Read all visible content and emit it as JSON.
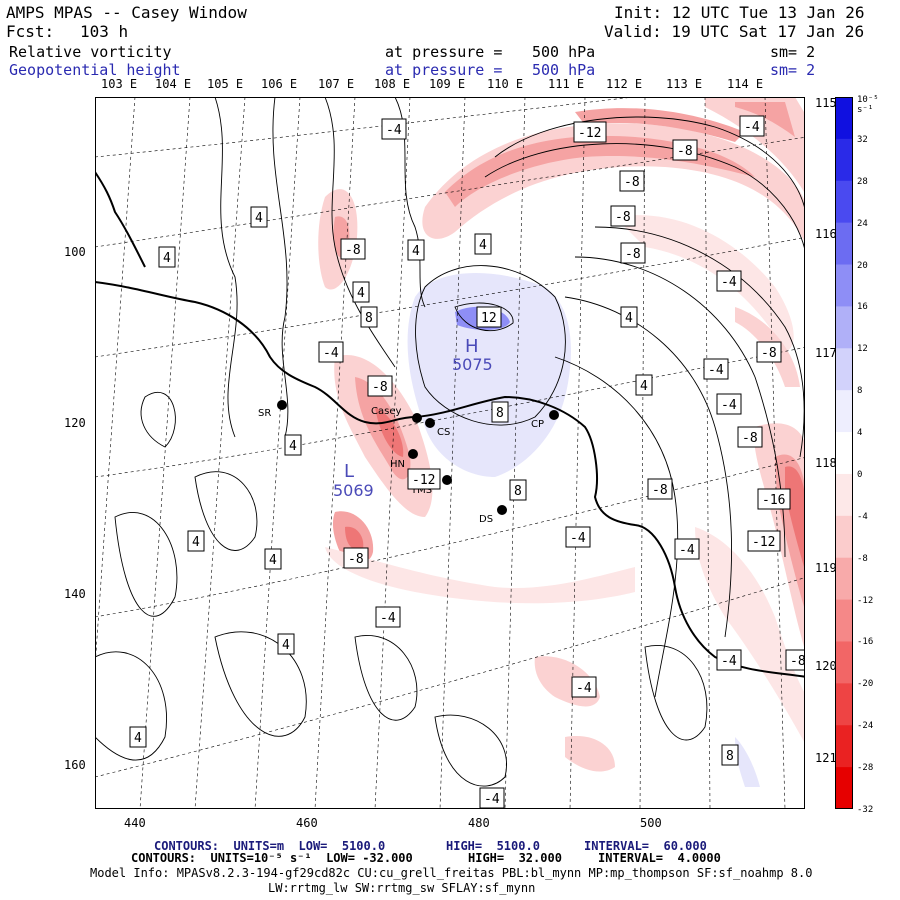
{
  "header": {
    "title": "AMPS MPAS -- Casey Window",
    "forecast_label": "Fcst:",
    "forecast_value": "103 h",
    "init": "Init: 12 UTC Tue 13 Jan 26",
    "valid": "Valid: 19 UTC Sat 17 Jan 26"
  },
  "fields": [
    {
      "name": "Relative vorticity",
      "level_label": "at pressure =",
      "level": "500 hPa",
      "smooth": "sm= 2",
      "color": "#000000"
    },
    {
      "name": "Geopotential height",
      "level_label": "at pressure =",
      "level": "500 hPa",
      "smooth": "sm= 2",
      "color": "#2a2ab0"
    }
  ],
  "axes": {
    "top_lon_labels": [
      "103 E",
      "104 E",
      "105 E",
      "106 E",
      "107 E",
      "108 E",
      "109 E",
      "110 E",
      "111 E",
      "112 E",
      "113 E",
      "114 E"
    ],
    "right_lon_labels": [
      "115 E",
      "116 E",
      "117 E",
      "118 E",
      "119 E",
      "120 E",
      "121 E"
    ],
    "x_ticks": [
      "440",
      "460",
      "480",
      "500"
    ],
    "y_ticks": [
      "100",
      "120",
      "140",
      "160"
    ]
  },
  "colorbar": {
    "units": "10⁻⁵ s⁻¹",
    "levels": [
      "32",
      "28",
      "24",
      "20",
      "16",
      "12",
      "8",
      "4",
      "0",
      "-4",
      "-8",
      "-12",
      "-16",
      "-20",
      "-24",
      "-28",
      "-32"
    ],
    "colors": [
      "#1010e0",
      "#2a2ae8",
      "#4a4af0",
      "#6c6cf2",
      "#8e8ef6",
      "#b0b0f8",
      "#d2d2fb",
      "#eeeefe",
      "#ffffff",
      "#fde8e8",
      "#fbcccc",
      "#f8aaaa",
      "#f58888",
      "#f26666",
      "#ee4444",
      "#ea2222",
      "#e60000"
    ]
  },
  "stations": [
    {
      "label": "SR"
    },
    {
      "label": "Casey"
    },
    {
      "label": "CS"
    },
    {
      "label": "HN"
    },
    {
      "label": "YMS"
    },
    {
      "label": "DS"
    },
    {
      "label": "CP"
    }
  ],
  "pressure_centers": [
    {
      "letter": "H",
      "value": "5075"
    },
    {
      "letter": "L",
      "value": "5069"
    }
  ],
  "contour_labels": [
    "-4",
    "-12",
    "-8",
    "-4",
    "-8",
    "-8",
    "-8",
    "-8",
    "-4",
    "4",
    "-8",
    "4",
    "4",
    "4",
    "4",
    "12",
    "-4",
    "4",
    "-8",
    "-4",
    "-8",
    "8",
    "4",
    "-4",
    "8",
    "-12",
    "-8",
    "-16",
    "-12",
    "8",
    "4",
    "-4",
    "-8",
    "-4",
    "4",
    "-4",
    "4",
    "-4",
    "-8",
    "-4",
    "-4",
    "8",
    "4",
    "4"
  ],
  "footer": {
    "line1_a": "CONTOURS:  UNITS=m  LOW=  5100.0",
    "line1_b": "HIGH=  5100.0",
    "line1_c": "INTERVAL=  60.000",
    "line2_a": "CONTOURS:  UNITS=10⁻⁵ s⁻¹  LOW= -32.000",
    "line2_b": "HIGH=  32.000",
    "line2_c": "INTERVAL=  4.0000",
    "model_info": "Model Info: MPASv8.2.3-194-gf29cd82c CU:cu_grell_freitas PBL:bl_mynn MP:mp_thompson SF:sf_noahmp 8.0",
    "model_info2": "LW:rrtmg_lw SW:rrtmg_sw SFLAY:sf_mynn"
  }
}
